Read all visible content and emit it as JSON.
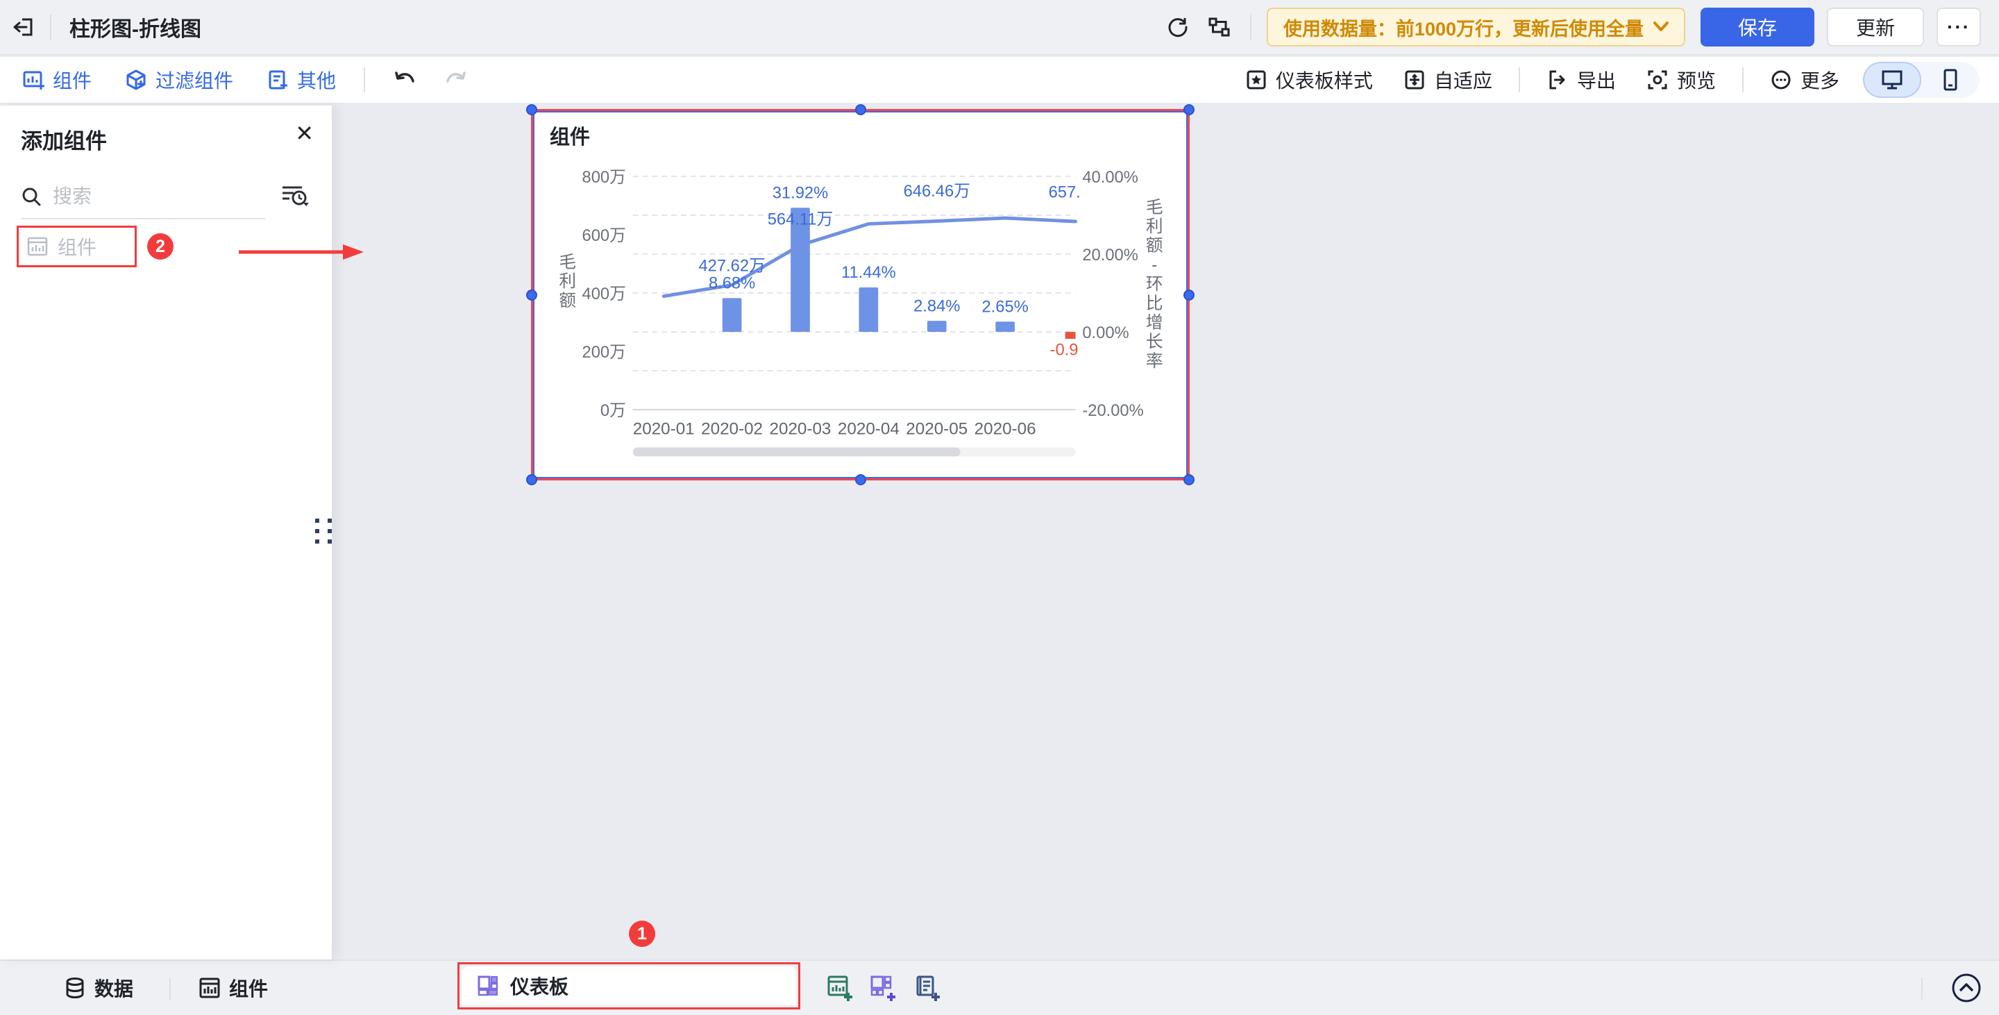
{
  "header": {
    "title": "柱形图-折线图",
    "banner_text": "使用数据量：前1000万行，更新后使用全量",
    "save_label": "保存",
    "update_label": "更新",
    "more_dots": "···"
  },
  "toolbar": {
    "component_label": "组件",
    "filter_label": "过滤组件",
    "other_label": "其他",
    "dashboard_style_label": "仪表板样式",
    "adaptive_label": "自适应",
    "export_label": "导出",
    "preview_label": "预览",
    "more_label": "更多",
    "device_selected": "desktop"
  },
  "panel": {
    "title": "添加组件",
    "search_placeholder": "搜索",
    "component_item_label": "组件",
    "step_badge": "2"
  },
  "canvas": {
    "step_badge": "1"
  },
  "bottombar": {
    "data_label": "数据",
    "component_label": "组件",
    "dashboard_tab_label": "仪表板"
  },
  "icons": {
    "back": "exit-door-arrow",
    "refresh": "circular-arrows",
    "relation": "node-link",
    "undo": "curved-arrow-left",
    "redo": "curved-arrow-right",
    "search": "magnifier",
    "search_filter": "list-clock",
    "close": "x",
    "desktop": "monitor",
    "phone": "smartphone",
    "data": "database",
    "component": "bar-chart",
    "dashboard_tab": "grid-layout",
    "add_chart": "chart-plus",
    "add_dashboard": "grid-plus",
    "add_report": "doc-plus",
    "collapse": "circled-chevron-up"
  },
  "chart_data": {
    "type": "bar-line combo, dual y-axis",
    "title": "组件",
    "categories": [
      "2020-01",
      "2020-02",
      "2020-03",
      "2020-04",
      "2020-05",
      "2020-06"
    ],
    "series": [
      {
        "name": "毛利额",
        "type": "line",
        "axis": "left",
        "unit": "万",
        "values": [
          389,
          427.62,
          564.11,
          637,
          646.46,
          657
        ],
        "labels": [
          "",
          "427.62万",
          "564.11万",
          "",
          "646.46万",
          "657."
        ]
      },
      {
        "name": "毛利额-环比增长率",
        "type": "bar",
        "axis": "right",
        "unit": "%",
        "values": [
          null,
          8.68,
          31.92,
          11.44,
          2.84,
          2.65
        ],
        "labels": [
          "",
          "8.68%",
          "31.92%",
          "11.44%",
          "2.84%",
          "2.65%"
        ]
      }
    ],
    "partial_next_point": {
      "bar_value": -0.9,
      "label": "-0.9"
    },
    "left_axis": {
      "title": "毛利额",
      "ticks": [
        "800万",
        "600万",
        "400万",
        "200万",
        "0万"
      ],
      "range": [
        0,
        800
      ]
    },
    "right_axis": {
      "title": "毛利额-环比增长率",
      "ticks": [
        "40.00%",
        "20.00%",
        "0.00%",
        "-20.00%"
      ],
      "range": [
        -20,
        40
      ]
    },
    "grid": "dashed horizontal",
    "legend": "none",
    "scrollbar_thumb_fraction": 0.74,
    "colors": {
      "bar": "#6e92e5",
      "line": "#7191e1",
      "label": "#3b6bd6",
      "negative": "#e8533e",
      "tick": "#6b7078"
    }
  }
}
